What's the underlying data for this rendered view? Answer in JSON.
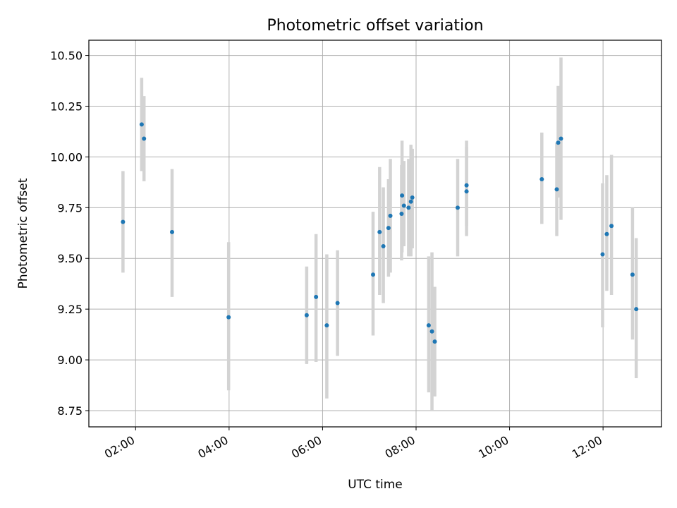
{
  "chart_data": {
    "type": "scatter",
    "title": "Photometric offset variation",
    "xlabel": "UTC time",
    "ylabel": "Photometric offset",
    "x_unit": "UTC hour",
    "xlim": [
      1.0,
      13.25
    ],
    "ylim": [
      8.67,
      10.575
    ],
    "grid": true,
    "x_ticks": [
      {
        "value": 2,
        "label": "02:00"
      },
      {
        "value": 4,
        "label": "04:00"
      },
      {
        "value": 6,
        "label": "06:00"
      },
      {
        "value": 8,
        "label": "08:00"
      },
      {
        "value": 10,
        "label": "10:00"
      },
      {
        "value": 12,
        "label": "12:00"
      }
    ],
    "y_ticks": [
      {
        "value": 8.75,
        "label": "8.75"
      },
      {
        "value": 9.0,
        "label": "9.00"
      },
      {
        "value": 9.25,
        "label": "9.25"
      },
      {
        "value": 9.5,
        "label": "9.50"
      },
      {
        "value": 9.75,
        "label": "9.75"
      },
      {
        "value": 10.0,
        "label": "10.00"
      },
      {
        "value": 10.25,
        "label": "10.25"
      },
      {
        "value": 10.5,
        "label": "10.50"
      }
    ],
    "colors": {
      "point": "#1f77b4",
      "errorbar": "#d3d3d3",
      "grid": "#b0b0b0"
    },
    "points": [
      {
        "x": 1.73,
        "y": 9.68,
        "lo": 9.43,
        "hi": 9.93
      },
      {
        "x": 2.13,
        "y": 10.16,
        "lo": 9.93,
        "hi": 10.39
      },
      {
        "x": 2.18,
        "y": 10.09,
        "lo": 9.88,
        "hi": 10.3
      },
      {
        "x": 2.78,
        "y": 9.63,
        "lo": 9.31,
        "hi": 9.94
      },
      {
        "x": 3.99,
        "y": 9.21,
        "lo": 8.85,
        "hi": 9.58
      },
      {
        "x": 5.66,
        "y": 9.22,
        "lo": 8.98,
        "hi": 9.46
      },
      {
        "x": 5.86,
        "y": 9.31,
        "lo": 8.99,
        "hi": 9.62
      },
      {
        "x": 6.09,
        "y": 9.17,
        "lo": 8.81,
        "hi": 9.52
      },
      {
        "x": 6.32,
        "y": 9.28,
        "lo": 9.02,
        "hi": 9.54
      },
      {
        "x": 7.08,
        "y": 9.42,
        "lo": 9.12,
        "hi": 9.73
      },
      {
        "x": 7.22,
        "y": 9.63,
        "lo": 9.32,
        "hi": 9.95
      },
      {
        "x": 7.3,
        "y": 9.56,
        "lo": 9.28,
        "hi": 9.85
      },
      {
        "x": 7.41,
        "y": 9.65,
        "lo": 9.41,
        "hi": 9.89
      },
      {
        "x": 7.45,
        "y": 9.71,
        "lo": 9.43,
        "hi": 9.99
      },
      {
        "x": 7.69,
        "y": 9.72,
        "lo": 9.49,
        "hi": 9.96
      },
      {
        "x": 7.7,
        "y": 9.81,
        "lo": 9.53,
        "hi": 10.08
      },
      {
        "x": 7.74,
        "y": 9.76,
        "lo": 9.56,
        "hi": 9.98
      },
      {
        "x": 7.84,
        "y": 9.75,
        "lo": 9.51,
        "hi": 9.99
      },
      {
        "x": 7.89,
        "y": 9.78,
        "lo": 9.51,
        "hi": 10.06
      },
      {
        "x": 7.92,
        "y": 9.8,
        "lo": 9.55,
        "hi": 10.04
      },
      {
        "x": 8.27,
        "y": 9.17,
        "lo": 8.84,
        "hi": 9.51
      },
      {
        "x": 8.34,
        "y": 9.14,
        "lo": 8.75,
        "hi": 9.53
      },
      {
        "x": 8.4,
        "y": 9.09,
        "lo": 8.82,
        "hi": 9.36
      },
      {
        "x": 8.89,
        "y": 9.75,
        "lo": 9.51,
        "hi": 9.99
      },
      {
        "x": 9.08,
        "y": 9.83,
        "lo": 9.61,
        "hi": 10.05
      },
      {
        "x": 9.08,
        "y": 9.86,
        "lo": 9.66,
        "hi": 10.08
      },
      {
        "x": 10.69,
        "y": 9.89,
        "lo": 9.67,
        "hi": 10.12
      },
      {
        "x": 11.01,
        "y": 9.84,
        "lo": 9.61,
        "hi": 10.07
      },
      {
        "x": 11.04,
        "y": 10.07,
        "lo": 9.8,
        "hi": 10.35
      },
      {
        "x": 11.1,
        "y": 10.09,
        "lo": 9.69,
        "hi": 10.49
      },
      {
        "x": 11.99,
        "y": 9.52,
        "lo": 9.16,
        "hi": 9.87
      },
      {
        "x": 12.08,
        "y": 9.62,
        "lo": 9.34,
        "hi": 9.91
      },
      {
        "x": 12.18,
        "y": 9.66,
        "lo": 9.32,
        "hi": 10.01
      },
      {
        "x": 12.63,
        "y": 9.42,
        "lo": 9.1,
        "hi": 9.75
      },
      {
        "x": 12.71,
        "y": 9.25,
        "lo": 8.91,
        "hi": 9.6
      }
    ]
  }
}
